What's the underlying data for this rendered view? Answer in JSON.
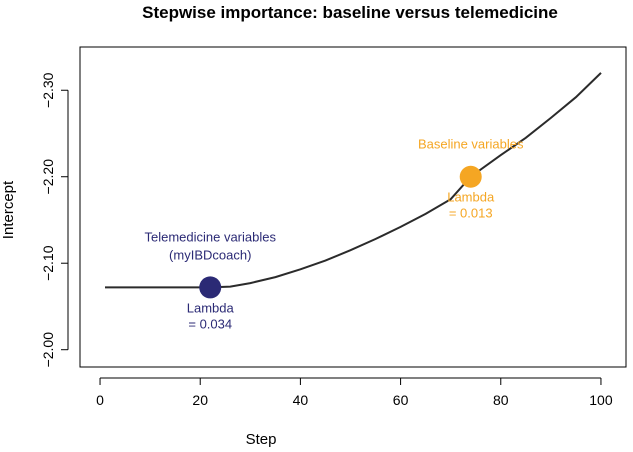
{
  "chart_data": {
    "type": "line",
    "title": "Stepwise importance: baseline versus telemedicine",
    "xlabel": "Step",
    "ylabel": "Intercept",
    "xlim": [
      -4,
      105
    ],
    "ylim": [
      -1.98,
      -2.35
    ],
    "x_ticks": [
      0,
      20,
      40,
      60,
      80,
      100
    ],
    "y_ticks": [
      -2.0,
      -2.1,
      -2.2,
      -2.3
    ],
    "x_tick_labels": [
      "0",
      "20",
      "40",
      "60",
      "80",
      "100"
    ],
    "y_tick_labels": [
      "−2.00",
      "−2.10",
      "−2.20",
      "−2.30"
    ],
    "grid": false,
    "series": [
      {
        "color": "#2b2b2b",
        "x": [
          1,
          10,
          20,
          22,
          26,
          30,
          35,
          40,
          45,
          50,
          55,
          60,
          65,
          70,
          74,
          80,
          85,
          90,
          95,
          100
        ],
        "y": [
          -2.072,
          -2.072,
          -2.072,
          -2.072,
          -2.073,
          -2.077,
          -2.084,
          -2.093,
          -2.103,
          -2.115,
          -2.128,
          -2.142,
          -2.157,
          -2.174,
          -2.2,
          -2.225,
          -2.245,
          -2.268,
          -2.292,
          -2.32
        ]
      }
    ],
    "points": [
      {
        "x": 22,
        "y": -2.072,
        "color": "#2b2a75",
        "group_label_lines": [
          "Telemedicine variables",
          "(myIBDcoach)"
        ],
        "lambda_label_lines": [
          "Lambda",
          "= 0.034"
        ]
      },
      {
        "x": 74,
        "y": -2.2,
        "color": "#f5a623",
        "group_label_lines": [
          "Baseline variables"
        ],
        "lambda_label_lines": [
          "Lambda",
          "= 0.013"
        ]
      }
    ]
  }
}
